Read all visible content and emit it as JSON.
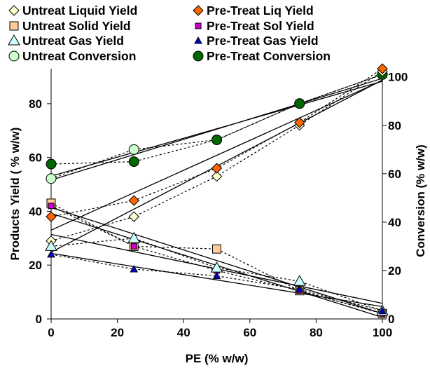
{
  "chart_data": {
    "type": "scatter",
    "xlabel": "PE (% w/w)",
    "ylabel": "Products   Yield ( % w/w)",
    "y2label": "Conversion (% w/w)",
    "xlim": [
      0,
      100
    ],
    "ylim": [
      0,
      93
    ],
    "y2lim": [
      0,
      103.4
    ],
    "xticks": [
      "0",
      "20",
      "40",
      "60",
      "80",
      "100"
    ],
    "yticks": [
      "0",
      "20",
      "40",
      "60",
      "80"
    ],
    "y2ticks": [
      "0",
      "20",
      "40",
      "60",
      "80",
      "100"
    ],
    "grid": false,
    "legend_position": "top",
    "series": [
      {
        "name": "Untreat Liquid Yield",
        "axis": "left",
        "marker": "diamond",
        "fill": "#ffffcc",
        "x": [
          0,
          25,
          50,
          75,
          100
        ],
        "y": [
          29,
          38,
          53,
          72,
          92
        ]
      },
      {
        "name": "Pre-Treat Liq Yield",
        "axis": "left",
        "marker": "diamond",
        "fill": "#ff6600",
        "x": [
          0,
          25,
          50,
          75,
          100
        ],
        "y": [
          38,
          44,
          56,
          73,
          93
        ]
      },
      {
        "name": "Untreat Solid  Yield",
        "axis": "left",
        "marker": "square",
        "fill": "#ffcc99",
        "x": [
          0,
          25,
          50,
          75,
          100
        ],
        "y": [
          43,
          27,
          26,
          10.5,
          2
        ]
      },
      {
        "name": "Pre-Treat Sol Yield",
        "axis": "left",
        "marker": "smallsquare",
        "fill": "#cc00cc",
        "x": [
          0,
          25,
          50,
          75,
          100
        ],
        "y": [
          42,
          27,
          18,
          10.5,
          2
        ]
      },
      {
        "name": "Untreat Gas Yield",
        "axis": "left",
        "marker": "triangle",
        "fill": "#ccffff",
        "x": [
          0,
          25,
          50,
          75,
          100
        ],
        "y": [
          27,
          30,
          19,
          14,
          3
        ]
      },
      {
        "name": "Pre-Treat Gas Yield",
        "axis": "left",
        "marker": "smalltriangle",
        "fill": "#0000cc",
        "x": [
          0,
          25,
          50,
          75,
          100
        ],
        "y": [
          24,
          18.5,
          16,
          11,
          3
        ]
      },
      {
        "name": "Untreat  Conversion",
        "axis": "right",
        "marker": "circle",
        "fill": "#ccffcc",
        "x": [
          0,
          25,
          50,
          75,
          100
        ],
        "y": [
          58,
          70,
          74,
          89,
          101
        ]
      },
      {
        "name": "Pre-Treat Conversion",
        "axis": "right",
        "marker": "circle",
        "fill": "#006600",
        "x": [
          0,
          25,
          50,
          75,
          100
        ],
        "y": [
          64,
          65,
          74,
          89,
          101
        ]
      }
    ]
  }
}
